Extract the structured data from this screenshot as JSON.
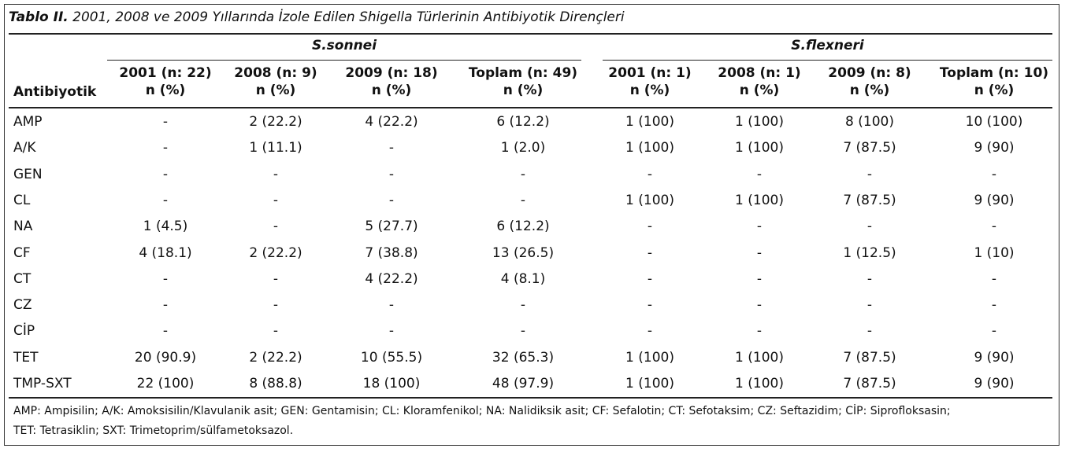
{
  "caption": {
    "label": "Tablo II.",
    "text": "2001, 2008 ve 2009 Yıllarında İzole Edilen Shigella Türlerinin Antibiyotik Dirençleri"
  },
  "groups": [
    "S.sonnei",
    "S.flexneri"
  ],
  "header": {
    "row_label": "Antibiyotik",
    "columns": [
      {
        "line1": "2001 (n: 22)",
        "line2": "n (%)"
      },
      {
        "line1": "2008 (n: 9)",
        "line2": "n (%)"
      },
      {
        "line1": "2009 (n: 18)",
        "line2": "n (%)"
      },
      {
        "line1": "Toplam (n: 49)",
        "line2": "n (%)"
      },
      {
        "line1": "2001 (n: 1)",
        "line2": "n (%)"
      },
      {
        "line1": "2008 (n: 1)",
        "line2": "n (%)"
      },
      {
        "line1": "2009 (n: 8)",
        "line2": "n (%)"
      },
      {
        "line1": "Toplam (n: 10)",
        "line2": "n (%)"
      }
    ]
  },
  "rows": [
    {
      "name": "AMP",
      "values": [
        "-",
        "2 (22.2)",
        "4 (22.2)",
        "6 (12.2)",
        "1 (100)",
        "1 (100)",
        "8 (100)",
        "10 (100)"
      ]
    },
    {
      "name": "A/K",
      "values": [
        "-",
        "1 (11.1)",
        "-",
        "1 (2.0)",
        "1 (100)",
        "1 (100)",
        "7 (87.5)",
        "9 (90)"
      ]
    },
    {
      "name": "GEN",
      "values": [
        "-",
        "-",
        "-",
        "-",
        "-",
        "-",
        "-",
        "-"
      ]
    },
    {
      "name": "CL",
      "values": [
        "-",
        "-",
        "-",
        "-",
        "1 (100)",
        "1 (100)",
        "7 (87.5)",
        "9 (90)"
      ]
    },
    {
      "name": "NA",
      "values": [
        "1 (4.5)",
        "-",
        "5 (27.7)",
        "6 (12.2)",
        "-",
        "-",
        "-",
        "-"
      ]
    },
    {
      "name": "CF",
      "values": [
        "4 (18.1)",
        "2 (22.2)",
        "7 (38.8)",
        "13 (26.5)",
        "-",
        "-",
        "1 (12.5)",
        "1 (10)"
      ]
    },
    {
      "name": "CT",
      "values": [
        "-",
        "-",
        "4 (22.2)",
        "4 (8.1)",
        "-",
        "-",
        "-",
        "-"
      ]
    },
    {
      "name": "CZ",
      "values": [
        "-",
        "-",
        "-",
        "-",
        "-",
        "-",
        "-",
        "-"
      ]
    },
    {
      "name": "CİP",
      "values": [
        "-",
        "-",
        "-",
        "-",
        "-",
        "-",
        "-",
        "-"
      ]
    },
    {
      "name": "TET",
      "values": [
        "20 (90.9)",
        "2 (22.2)",
        "10 (55.5)",
        "32 (65.3)",
        "1 (100)",
        "1 (100)",
        "7 (87.5)",
        "9 (90)"
      ]
    },
    {
      "name": "TMP-SXT",
      "values": [
        "22 (100)",
        "8 (88.8)",
        "18 (100)",
        "48 (97.9)",
        "1 (100)",
        "1 (100)",
        "7 (87.5)",
        "9 (90)"
      ]
    }
  ],
  "footnote": {
    "line1": "AMP: Ampisilin; A/K: Amoksisilin/Klavulanik asit; GEN: Gentamisin; CL: Kloramfenikol; NA: Nalidiksik asit; CF: Sefalotin; CT: Sefotaksim; CZ: Seftazidim; CİP: Siprofloksasin;",
    "line2": "TET: Tetrasiklin; SXT: Trimetoprim/sülfametoksazol."
  }
}
